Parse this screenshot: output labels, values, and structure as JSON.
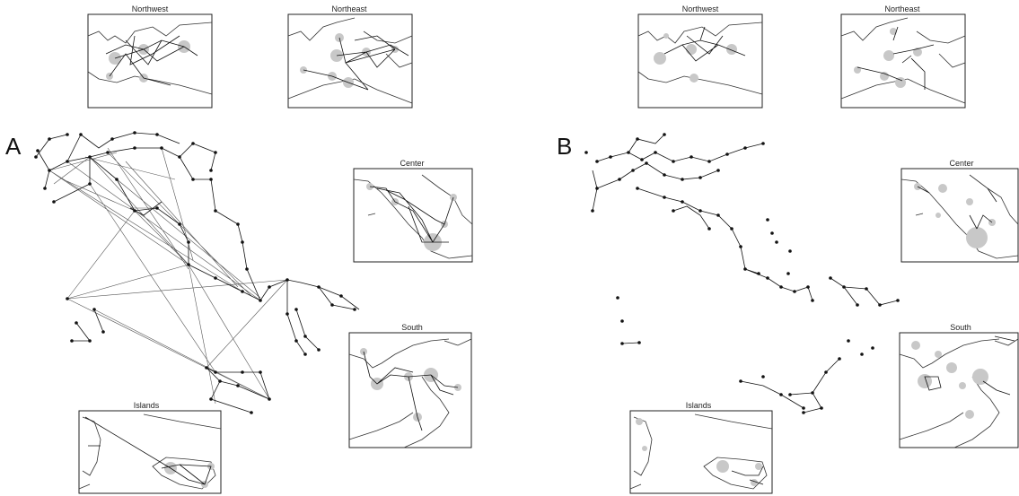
{
  "panels": [
    {
      "letter": "A",
      "insets": {
        "northwest": "Northwest",
        "northeast": "Northeast",
        "center": "Center",
        "south": "South",
        "islands": "Islands"
      }
    },
    {
      "letter": "B",
      "insets": {
        "northwest": "Northwest",
        "northeast": "Northeast",
        "center": "Center",
        "south": "South",
        "islands": "Islands"
      }
    }
  ],
  "colors": {
    "edge": "#111111",
    "node": "#111111",
    "hub_circle": "#c8c8c8",
    "frame": "#222222"
  }
}
